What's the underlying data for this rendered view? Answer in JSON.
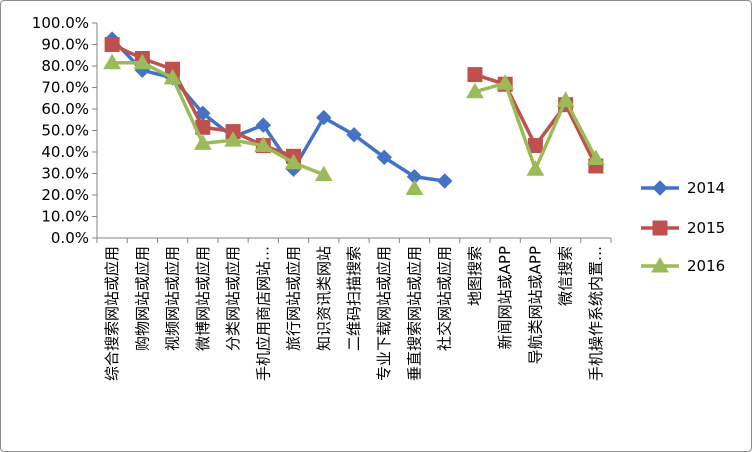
{
  "chart_data": {
    "type": "line",
    "categories": [
      "综合搜索网站或应用",
      "购物网站或应用",
      "视频网站或应用",
      "微博网站或应用",
      "分类网站或应用",
      "手机应用商店网站…",
      "旅行网站或应用",
      "知识资讯类网站",
      "二维码扫描搜索",
      "专业下载网站或应用",
      "垂直搜索网站或应用",
      "社交网站或应用",
      "地图搜索",
      "新闻网站或APP",
      "导航类网站或APP",
      "微信搜索",
      "手机操作系统内置…"
    ],
    "series": [
      {
        "name": "2014",
        "color": "#4472C4",
        "marker": "diamond",
        "values": [
          92.5,
          78.0,
          74.5,
          58.0,
          47.0,
          52.5,
          32.0,
          56.0,
          48.0,
          37.5,
          28.5,
          26.5,
          null,
          null,
          null,
          null,
          null
        ]
      },
      {
        "name": "2015",
        "color": "#C0504D",
        "marker": "square",
        "values": [
          90.0,
          83.5,
          78.5,
          51.5,
          49.5,
          43.0,
          38.0,
          null,
          null,
          null,
          null,
          null,
          76.0,
          71.5,
          43.0,
          62.0,
          33.5
        ]
      },
      {
        "name": "2016",
        "color": "#9BBB59",
        "marker": "triangle",
        "values": [
          81.5,
          81.5,
          74.5,
          44.0,
          45.5,
          43.0,
          35.0,
          29.5,
          null,
          null,
          23.0,
          null,
          68.0,
          72.0,
          32.0,
          64.0,
          37.0
        ]
      }
    ],
    "yticks": [
      "0.0%",
      "10.0%",
      "20.0%",
      "30.0%",
      "40.0%",
      "50.0%",
      "60.0%",
      "70.0%",
      "80.0%",
      "90.0%",
      "100.0%"
    ],
    "ylim": [
      0,
      100
    ],
    "grid": false,
    "legend_position": "right"
  }
}
